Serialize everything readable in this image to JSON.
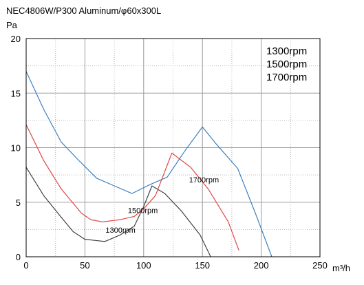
{
  "chart_data": {
    "type": "line",
    "title": "NEC4806W/P300 Aluminum/φ60x300L",
    "ylabel": "Pa",
    "xlabel": "m³/h",
    "xlim": [
      0,
      250
    ],
    "ylim": [
      0,
      20
    ],
    "x_ticks": [
      0,
      50,
      100,
      150,
      200,
      250
    ],
    "y_ticks": [
      0,
      5,
      10,
      15,
      20
    ],
    "grid": true,
    "legend_placement": "top-right",
    "legend": [
      "1300rpm",
      "1500rpm",
      "1700rpm"
    ],
    "series": [
      {
        "name": "1300rpm",
        "color": "#404040",
        "points": [
          [
            0,
            8.2
          ],
          [
            15,
            5.6
          ],
          [
            30,
            3.6
          ],
          [
            40,
            2.3
          ],
          [
            50,
            1.6
          ],
          [
            67,
            1.4
          ],
          [
            80,
            2.0
          ],
          [
            92,
            2.8
          ],
          [
            100,
            4.6
          ],
          [
            107,
            6.5
          ],
          [
            118,
            5.8
          ],
          [
            132,
            4.2
          ],
          [
            148,
            2.0
          ],
          [
            157,
            0.0
          ]
        ],
        "annotation": {
          "text": "1300rpm",
          "at": [
            93,
            2.2
          ]
        }
      },
      {
        "name": "1500rpm",
        "color": "#e24545",
        "points": [
          [
            0,
            12.1
          ],
          [
            15,
            8.8
          ],
          [
            30,
            6.2
          ],
          [
            47,
            4.0
          ],
          [
            55,
            3.4
          ],
          [
            65,
            3.2
          ],
          [
            80,
            3.4
          ],
          [
            92,
            3.7
          ],
          [
            100,
            4.4
          ],
          [
            110,
            5.6
          ],
          [
            124,
            9.5
          ],
          [
            140,
            8.2
          ],
          [
            155,
            6.2
          ],
          [
            172,
            3.2
          ],
          [
            181,
            0.6
          ]
        ],
        "annotation": {
          "text": "1500rpm",
          "at": [
            112,
            4.0
          ]
        }
      },
      {
        "name": "1700rpm",
        "color": "#3a7fc1",
        "points": [
          [
            0,
            17.0
          ],
          [
            15,
            13.5
          ],
          [
            30,
            10.5
          ],
          [
            45,
            8.8
          ],
          [
            60,
            7.2
          ],
          [
            75,
            6.5
          ],
          [
            90,
            5.8
          ],
          [
            105,
            6.6
          ],
          [
            120,
            7.3
          ],
          [
            135,
            9.7
          ],
          [
            150,
            11.9
          ],
          [
            162,
            10.3
          ],
          [
            180,
            8.1
          ],
          [
            195,
            4.0
          ],
          [
            209,
            0.0
          ]
        ],
        "annotation": {
          "text": "1700rpm",
          "at": [
            164,
            6.8
          ]
        }
      }
    ]
  }
}
